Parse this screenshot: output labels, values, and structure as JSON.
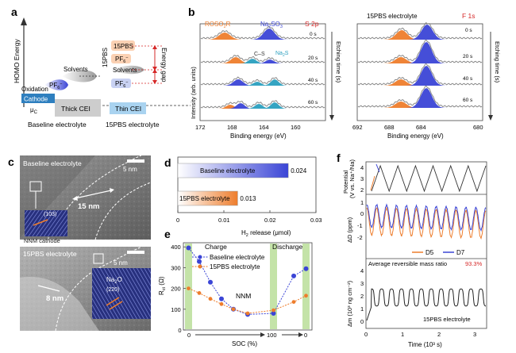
{
  "panels": {
    "a": {
      "letter": "a",
      "y_label": "HOMO Energy",
      "oxidation": "Oxidation",
      "cathode": "Cathode",
      "mu_c": "μ",
      "mu_c_sub": "C",
      "thick_cei": "Thick CEI",
      "thin_cei": "Thin CEI",
      "solvents": "Solvents",
      "pf6": "PF",
      "pf6_sub": "6",
      "pf6_sup": "−",
      "pbs": "15PBS",
      "pbs_vertical": "15PBS",
      "energy_gap": "Energy gap",
      "baseline_label": "Baseline electrolyte",
      "pbs_label": "15PBS electrolyte"
    },
    "b": {
      "letter": "b",
      "left": {
        "rosor": "ROSO",
        "rosor_sub": "2",
        "rosor_tail": "R",
        "na2so3": "Na",
        "na2so3_mid": "2",
        "na2so3_tail": "SO",
        "na2so3_sub": "3",
        "cs": "C–S",
        "na2s": "Na",
        "na2s_sub": "2",
        "na2s_tail": "S",
        "title": "S 2p",
        "times": [
          "0 s",
          "20 s",
          "40 s",
          "60 s"
        ],
        "x_ticks": [
          "172",
          "168",
          "164",
          "160"
        ],
        "x_label": "Binding energy (eV)",
        "y_label": "Intensity (arb. units)",
        "etch": "Etching time (s)"
      },
      "right": {
        "electrolyte": "15PBS electrolyte",
        "title": "F 1s",
        "times": [
          "0 s",
          "20 s",
          "40 s",
          "60 s"
        ],
        "x_ticks": [
          "692",
          "688",
          "684",
          "680"
        ],
        "x_label": "Binding energy (eV)",
        "etch": "Etching time (s)"
      }
    },
    "c": {
      "letter": "c",
      "top_label": "Baseline electrolyte",
      "top_scale": "5 nm",
      "top_thickness": "15 nm",
      "top_lattice": "(103)",
      "top_cathode": "NNM cathode",
      "bottom_label": "15PBS electrolyte",
      "bottom_scale": "5 nm",
      "bottom_thickness": "8 nm",
      "bottom_phase": "Na",
      "bottom_phase_sub": "2",
      "bottom_phase_tail": "O",
      "bottom_lattice": "(220)"
    },
    "d": {
      "letter": "d",
      "x_label": "H",
      "x_label_sub": "2",
      "x_label_tail": " release (μmol)",
      "x_ticks": [
        "0",
        "0.01",
        "0.02",
        "0.03"
      ]
    },
    "e": {
      "letter": "e",
      "charge": "Charge",
      "discharge": "Discharge",
      "nnm": "NNM",
      "legend": [
        "Baseline electrolyte",
        "15PBS electrolyte"
      ],
      "y_label": "R",
      "y_label_sub": "ct",
      "y_label_tail": " (Ω)",
      "y_ticks": [
        "0",
        "100",
        "200",
        "300",
        "400"
      ],
      "x_ticks": [
        "0",
        "100",
        "0"
      ],
      "x_label": "SOC (%)"
    },
    "f": {
      "letter": "f",
      "potential_label": "Potential",
      "potential_label2": "(V vs. Na⁺/Na)",
      "pot_ticks": [
        "4",
        "3",
        "2"
      ],
      "dD_label": "ΔD (ppm)",
      "dD_ticks": [
        "1",
        "0",
        "-1",
        "-2"
      ],
      "legend_d5": "D5",
      "legend_d7": "D7",
      "ratio_text": "Average reversible mass ratio",
      "ratio_value": "93.3%",
      "dm_label": "Δm (10³ ng cm⁻²)",
      "dm_ticks": [
        "4",
        "3",
        "2",
        "1",
        "0"
      ],
      "electrolyte": "15PBS electrolyte",
      "x_ticks": [
        "0",
        "1",
        "2",
        "3"
      ],
      "x_label": "Time (10³ s)"
    }
  },
  "chart_data": [
    {
      "type": "bar",
      "orientation": "horizontal",
      "categories": [
        "Baseline electrolyte",
        "15PBS electrolyte"
      ],
      "values": [
        0.024,
        0.013
      ],
      "value_labels": [
        "0.024",
        "0.013"
      ],
      "xlabel": "H2 release (μmol)",
      "xlim": [
        0,
        0.03
      ],
      "colors": [
        "#3b45d6",
        "#ee7d2c"
      ]
    },
    {
      "type": "line",
      "x_categories": [
        "0",
        "",
        "",
        "",
        "",
        "",
        "100",
        "",
        "0"
      ],
      "xlabel": "SOC (%)",
      "ylabel": "Rct (Ω)",
      "ylim": [
        0,
        420
      ],
      "series": [
        {
          "name": "Baseline electrolyte",
          "color": "#3b45d6",
          "values": [
            395,
            330,
            230,
            150,
            100,
            75,
            80,
            260,
            295
          ]
        },
        {
          "name": "15PBS electrolyte",
          "color": "#ee7d2c",
          "values": [
            200,
            178,
            150,
            125,
            100,
            80,
            95,
            135,
            165
          ]
        }
      ]
    }
  ]
}
